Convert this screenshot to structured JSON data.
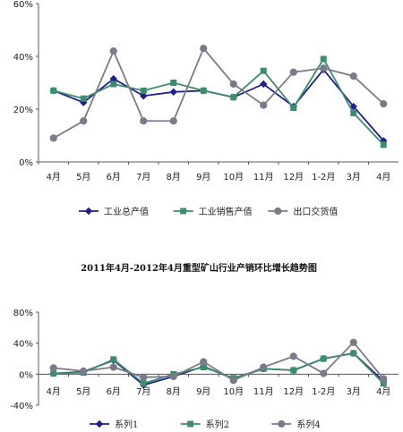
{
  "charts_title": "2011年4月-2012年4月重型矿山行业产销环比增长趋势图",
  "chart_data": [
    {
      "type": "line",
      "title": "",
      "xlabel": "",
      "ylabel": "",
      "categories": [
        "4月",
        "5月",
        "6月",
        "7月",
        "8月",
        "9月",
        "10月",
        "11月",
        "12月",
        "1-2月",
        "3月",
        "4月"
      ],
      "y_ticks": [
        "60%",
        "40%",
        "20%",
        "0%"
      ],
      "ylim": [
        0,
        60
      ],
      "grid": false,
      "legend_position": "bottom",
      "series": [
        {
          "name": "工业总产值",
          "color": "#1f1f8f",
          "marker": "diamond",
          "values": [
            27,
            22.5,
            31.5,
            25,
            26.5,
            27,
            24.5,
            29.5,
            21,
            35,
            21,
            8
          ]
        },
        {
          "name": "工业销售产值",
          "color": "#3c8c6e",
          "marker": "square",
          "values": [
            27,
            24,
            29.5,
            27,
            30,
            27,
            24.5,
            34.5,
            20.5,
            39,
            18.5,
            6.5
          ]
        },
        {
          "name": "出口交货值",
          "color": "#7a7a8a",
          "marker": "circle",
          "values": [
            9,
            15.5,
            42,
            15.5,
            15.5,
            43,
            29.5,
            21.5,
            34,
            35.5,
            32.5,
            22
          ]
        }
      ]
    },
    {
      "type": "line",
      "title": "2011年4月-2012年4月重型矿山行业产销环比增长趋势图",
      "xlabel": "",
      "ylabel": "",
      "categories": [
        "4月",
        "5月",
        "6月",
        "7月",
        "8月",
        "9月",
        "10月",
        "11月",
        "12月",
        "1-2月",
        "3月",
        "4月"
      ],
      "y_ticks": [
        "80%",
        "40%",
        "0%",
        "-40%"
      ],
      "ylim": [
        -40,
        80
      ],
      "grid": false,
      "legend_position": "bottom",
      "series": [
        {
          "name": "系列1",
          "color": "#1f1f8f",
          "marker": "diamond",
          "values": [
            1,
            3,
            18,
            -14,
            -3,
            10,
            -6,
            7,
            5,
            20,
            27,
            -9
          ]
        },
        {
          "name": "系列2",
          "color": "#3c8c6e",
          "marker": "square",
          "values": [
            1,
            2,
            19,
            -12,
            0,
            9,
            -5,
            7,
            5,
            20,
            27,
            -12
          ]
        },
        {
          "name": "系列4",
          "color": "#7a7a8a",
          "marker": "circle",
          "values": [
            8,
            4,
            9,
            -4,
            -3,
            16,
            -8,
            9,
            23,
            1,
            41,
            -6
          ]
        }
      ]
    }
  ]
}
